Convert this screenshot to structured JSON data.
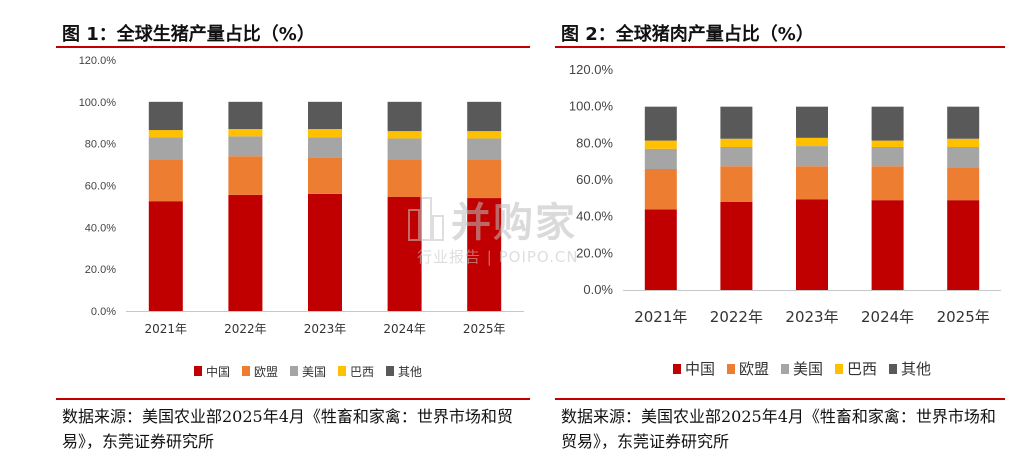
{
  "charts": [
    {
      "title": "图 1：全球生猪产量占比（%）",
      "source": "数据来源：美国农业部2025年4月《牲畜和家禽：世界市场和贸易》，东莞证券研究所"
    },
    {
      "title": "图 2：全球猪肉产量占比（%）",
      "source": "数据来源：美国农业部2025年4月《牲畜和家禽：世界市场和贸易》，东莞证券研究所"
    }
  ],
  "watermark": {
    "main": "并购家",
    "sub": "行业报告 | POIPO.CN"
  },
  "colors": {
    "中国": "#c00000",
    "欧盟": "#ed7d31",
    "美国": "#a5a5a5",
    "巴西": "#ffc000",
    "其他": "#595959",
    "rule": "#c00000"
  },
  "chart_data": [
    {
      "type": "bar",
      "stacked": true,
      "title": "图 1：全球生猪产量占比（%）",
      "categories": [
        "2021年",
        "2022年",
        "2023年",
        "2024年",
        "2025年"
      ],
      "series": [
        {
          "name": "中国",
          "values": [
            52.5,
            55.5,
            56.0,
            54.5,
            54.0
          ]
        },
        {
          "name": "欧盟",
          "values": [
            20.0,
            18.5,
            17.5,
            18.0,
            18.5
          ]
        },
        {
          "name": "美国",
          "values": [
            10.5,
            9.5,
            9.5,
            10.0,
            10.0
          ]
        },
        {
          "name": "巴西",
          "values": [
            3.5,
            3.5,
            4.0,
            3.5,
            3.5
          ]
        },
        {
          "name": "其他",
          "values": [
            13.5,
            13.0,
            13.0,
            14.0,
            14.0
          ]
        }
      ],
      "yticks": [
        "0.0%",
        "20.0%",
        "40.0%",
        "60.0%",
        "80.0%",
        "100.0%",
        "120.0%"
      ],
      "ylim": [
        0,
        120
      ],
      "legend": "bottom",
      "grid": false
    },
    {
      "type": "bar",
      "stacked": true,
      "title": "图 2：全球猪肉产量占比（%）",
      "categories": [
        "2021年",
        "2022年",
        "2023年",
        "2024年",
        "2025年"
      ],
      "series": [
        {
          "name": "中国",
          "values": [
            44.0,
            48.0,
            49.5,
            49.0,
            49.0
          ]
        },
        {
          "name": "欧盟",
          "values": [
            22.0,
            19.5,
            18.0,
            18.5,
            18.0
          ]
        },
        {
          "name": "美国",
          "values": [
            11.0,
            10.5,
            11.0,
            10.5,
            11.0
          ]
        },
        {
          "name": "巴西",
          "values": [
            4.5,
            4.5,
            4.5,
            3.5,
            4.5
          ]
        },
        {
          "name": "其他",
          "values": [
            18.5,
            17.5,
            17.0,
            18.5,
            17.5
          ]
        }
      ],
      "yticks": [
        "0.0%",
        "20.0%",
        "40.0%",
        "60.0%",
        "80.0%",
        "100.0%",
        "120.0%"
      ],
      "ylim": [
        0,
        120
      ],
      "legend": "bottom",
      "grid": false
    }
  ]
}
